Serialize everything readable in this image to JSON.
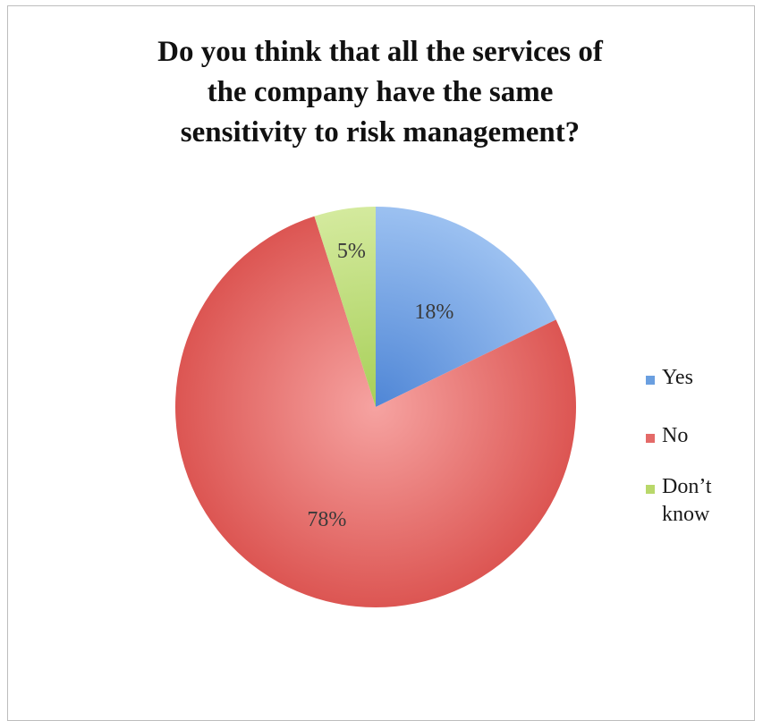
{
  "chart_data": {
    "type": "pie",
    "title": "Do you think that all the services of\nthe company have the same\nsensitivity to risk management?",
    "categories": [
      "Yes",
      "No",
      "Don’t know"
    ],
    "values": [
      18,
      78,
      5
    ],
    "data_labels": [
      "18%",
      "78%",
      "5%"
    ],
    "colors": [
      "#6a9fe0",
      "#e46a68",
      "#b9d86a"
    ],
    "legend_position": "right",
    "start_angle": "12 o'clock",
    "direction": "clockwise"
  }
}
